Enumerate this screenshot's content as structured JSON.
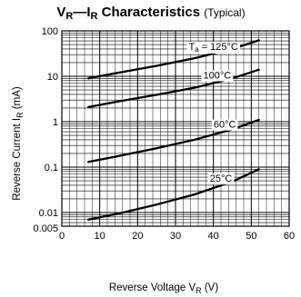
{
  "chart_data": {
    "type": "line",
    "title": {
      "v": "V",
      "v_sub": "R",
      "dash": "—",
      "i": "I",
      "i_sub": "R",
      "main": "Characteristics",
      "note": "(Typical)"
    },
    "xlabel": {
      "text": "Reverse Voltage",
      "sym": "V",
      "sub": "R",
      "unit": "(V)"
    },
    "ylabel": {
      "text": "Reverse Current",
      "sym": "I",
      "sub": "R",
      "unit": "(mA)"
    },
    "xlim": [
      0,
      60
    ],
    "ylim": [
      0.005,
      100
    ],
    "yscale": "log",
    "grid": true,
    "x_ticks": [
      "0",
      "10",
      "20",
      "30",
      "40",
      "50",
      "60"
    ],
    "y_ticks": [
      {
        "value": 100,
        "label": "100"
      },
      {
        "value": 10,
        "label": "10"
      },
      {
        "value": 1,
        "label": "1"
      },
      {
        "value": 0.1,
        "label": "0.1"
      },
      {
        "value": 0.01,
        "label": "0.01"
      },
      {
        "value": 0.005,
        "label": "0.005"
      }
    ],
    "series": [
      {
        "name": "Ta = 125°C",
        "label_prefix": "T",
        "label_sub": "a",
        "label_rest": " = 125°C",
        "label_x": 40,
        "x": [
          7,
          15,
          25,
          35,
          45,
          52
        ],
        "y": [
          9,
          12,
          17,
          25,
          40,
          62
        ]
      },
      {
        "name": "100°C",
        "label_prefix": "100°C",
        "label_sub": "",
        "label_rest": "",
        "label_x": 41,
        "x": [
          7,
          15,
          25,
          35,
          45,
          52
        ],
        "y": [
          2.1,
          2.8,
          3.9,
          5.6,
          9.0,
          14
        ]
      },
      {
        "name": "60°C",
        "label_prefix": "60°C",
        "label_sub": "",
        "label_rest": "",
        "label_x": 43,
        "x": [
          7,
          15,
          25,
          35,
          45,
          52
        ],
        "y": [
          0.13,
          0.175,
          0.26,
          0.4,
          0.68,
          1.1
        ]
      },
      {
        "name": "25°C",
        "label_prefix": "25°C",
        "label_sub": "",
        "label_rest": "",
        "label_x": 42,
        "x": [
          7,
          15,
          25,
          35,
          45,
          52
        ],
        "y": [
          0.007,
          0.0095,
          0.015,
          0.025,
          0.048,
          0.09
        ]
      }
    ]
  }
}
